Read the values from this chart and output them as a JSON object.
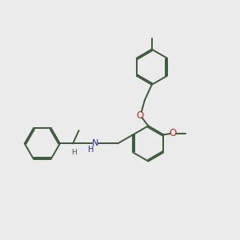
{
  "bg_color": "#ebebeb",
  "bond_color": "#3a5a3a",
  "N_color": "#2222cc",
  "O_color": "#cc2222",
  "bond_width": 1.4,
  "figsize": [
    3.0,
    3.0
  ],
  "dpi": 100,
  "xlim": [
    0,
    10
  ],
  "ylim": [
    0,
    10
  ]
}
